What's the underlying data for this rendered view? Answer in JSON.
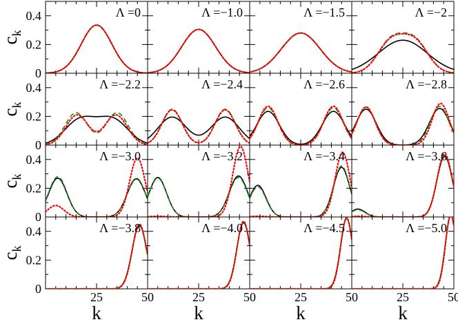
{
  "chart_data": {
    "type": "line",
    "layout": {
      "rows": 4,
      "cols": 4,
      "shared_axes": true
    },
    "xlabel": "k",
    "ylabel": "c",
    "ylabel_subscript": "k",
    "xlim": [
      0,
      50
    ],
    "ylim": [
      0,
      0.5
    ],
    "xticks": [
      25,
      50
    ],
    "xtick_labels": [
      "25",
      "50"
    ],
    "yticks": [
      0,
      0.2,
      0.4
    ],
    "ytick_labels": [
      "0",
      "0.2",
      "0.4"
    ],
    "grid": false,
    "legend": "none",
    "series_styles": [
      {
        "key": "solid",
        "dash": "solid",
        "color": "#000000"
      },
      {
        "key": "dashed",
        "dash": "dashed",
        "color": "#1a8a1a"
      },
      {
        "key": "dotted",
        "dash": "dotted",
        "color": "#ff0000"
      }
    ],
    "panels": [
      {
        "label": "Λ =0",
        "series": {
          "solid": {
            "peaks": [
              {
                "c": 25,
                "s": 7.5,
                "a": 0.335
              }
            ]
          },
          "dashed": {
            "peaks": [
              {
                "c": 25,
                "s": 7.5,
                "a": 0.335
              }
            ]
          },
          "dotted": {
            "peaks": [
              {
                "c": 25,
                "s": 7.5,
                "a": 0.335
              }
            ]
          }
        }
      },
      {
        "label": "Λ =−1.0",
        "series": {
          "solid": {
            "peaks": [
              {
                "c": 25,
                "s": 8.3,
                "a": 0.305
              }
            ]
          },
          "dashed": {
            "peaks": [
              {
                "c": 25,
                "s": 8.3,
                "a": 0.305
              }
            ]
          },
          "dotted": {
            "peaks": [
              {
                "c": 25,
                "s": 8.3,
                "a": 0.305
              }
            ]
          }
        }
      },
      {
        "label": "Λ =−1.5",
        "series": {
          "solid": {
            "peaks": [
              {
                "c": 25,
                "s": 9.5,
                "a": 0.28
              }
            ]
          },
          "dashed": {
            "peaks": [
              {
                "c": 25,
                "s": 9.5,
                "a": 0.28
              }
            ]
          },
          "dotted": {
            "peaks": [
              {
                "c": 25,
                "s": 9.5,
                "a": 0.28
              }
            ]
          }
        }
      },
      {
        "label": "Λ =−2",
        "series": {
          "solid": {
            "peaks": [
              {
                "c": 25,
                "s": 12,
                "a": 0.23
              }
            ]
          },
          "dashed": {
            "peaks": [
              {
                "c": 19,
                "s": 6.5,
                "a": 0.215
              },
              {
                "c": 31,
                "s": 6.5,
                "a": 0.215
              }
            ]
          },
          "dotted": {
            "peaks": [
              {
                "c": 19,
                "s": 6.5,
                "a": 0.21
              },
              {
                "c": 31,
                "s": 6.5,
                "a": 0.21
              }
            ]
          }
        }
      },
      {
        "label": "Λ =−2.2",
        "series": {
          "solid": {
            "peaks": [
              {
                "c": 17,
                "s": 7.5,
                "a": 0.175
              },
              {
                "c": 33,
                "s": 7.5,
                "a": 0.175
              }
            ]
          },
          "dashed": {
            "peaks": [
              {
                "c": 15,
                "s": 5.5,
                "a": 0.225
              },
              {
                "c": 35,
                "s": 5.5,
                "a": 0.225
              }
            ]
          },
          "dotted": {
            "peaks": [
              {
                "c": 15.5,
                "s": 5.5,
                "a": 0.21
              },
              {
                "c": 34.5,
                "s": 5.5,
                "a": 0.21
              }
            ]
          }
        }
      },
      {
        "label": "Λ =−2.4",
        "series": {
          "solid": {
            "peaks": [
              {
                "c": 12,
                "s": 7,
                "a": 0.195
              },
              {
                "c": 38,
                "s": 7,
                "a": 0.195
              }
            ]
          },
          "dashed": {
            "peaks": [
              {
                "c": 12,
                "s": 5,
                "a": 0.25
              },
              {
                "c": 38,
                "s": 5,
                "a": 0.25
              }
            ]
          },
          "dotted": {
            "peaks": [
              {
                "c": 12,
                "s": 5,
                "a": 0.245
              },
              {
                "c": 38,
                "s": 5,
                "a": 0.245
              }
            ]
          }
        }
      },
      {
        "label": "Λ =−2.6",
        "series": {
          "solid": {
            "peaks": [
              {
                "c": 9,
                "s": 5.5,
                "a": 0.235
              },
              {
                "c": 41,
                "s": 5.5,
                "a": 0.235
              }
            ]
          },
          "dashed": {
            "peaks": [
              {
                "c": 9,
                "s": 4.8,
                "a": 0.26
              },
              {
                "c": 41,
                "s": 4.8,
                "a": 0.26
              }
            ]
          },
          "dotted": {
            "peaks": [
              {
                "c": 9,
                "s": 4.8,
                "a": 0.27
              },
              {
                "c": 41,
                "s": 4.8,
                "a": 0.27
              }
            ]
          }
        }
      },
      {
        "label": "Λ =−2.8",
        "series": {
          "solid": {
            "peaks": [
              {
                "c": 7,
                "s": 5,
                "a": 0.25
              },
              {
                "c": 43,
                "s": 5,
                "a": 0.255
              }
            ]
          },
          "dashed": {
            "peaks": [
              {
                "c": 7,
                "s": 4.5,
                "a": 0.265
              },
              {
                "c": 43,
                "s": 4.5,
                "a": 0.27
              }
            ]
          },
          "dotted": {
            "peaks": [
              {
                "c": 7,
                "s": 4.5,
                "a": 0.265
              },
              {
                "c": 43.5,
                "s": 4.2,
                "a": 0.29
              }
            ]
          }
        }
      },
      {
        "label": "Λ =−3.0",
        "series": {
          "solid": {
            "peaks": [
              {
                "c": 6,
                "s": 4.5,
                "a": 0.27
              },
              {
                "c": 44.5,
                "s": 4.5,
                "a": 0.265
              }
            ]
          },
          "dashed": {
            "peaks": [
              {
                "c": 6,
                "s": 4.5,
                "a": 0.28
              },
              {
                "c": 44.5,
                "s": 4.5,
                "a": 0.27
              }
            ]
          },
          "dotted": {
            "peaks": [
              {
                "c": 5,
                "s": 4,
                "a": 0.08
              },
              {
                "c": 45,
                "s": 3.8,
                "a": 0.41
              }
            ]
          }
        }
      },
      {
        "label": "Λ =−3.2",
        "series": {
          "solid": {
            "peaks": [
              {
                "c": 5,
                "s": 4.3,
                "a": 0.275
              },
              {
                "c": 44.5,
                "s": 4.5,
                "a": 0.285
              }
            ]
          },
          "dashed": {
            "peaks": [
              {
                "c": 5,
                "s": 4.3,
                "a": 0.27
              },
              {
                "c": 44.5,
                "s": 4.5,
                "a": 0.275
              }
            ]
          },
          "dotted": {
            "peaks": [
              {
                "c": 5,
                "s": 4,
                "a": 0.005
              },
              {
                "c": 45.5,
                "s": 3.8,
                "a": 0.49
              }
            ]
          }
        }
      },
      {
        "label": "Λ =−3.4",
        "series": {
          "solid": {
            "peaks": [
              {
                "c": 4,
                "s": 4,
                "a": 0.22
              },
              {
                "c": 45,
                "s": 4,
                "a": 0.345
              }
            ]
          },
          "dashed": {
            "peaks": [
              {
                "c": 4,
                "s": 4,
                "a": 0.21
              },
              {
                "c": 45,
                "s": 4,
                "a": 0.355
              }
            ]
          },
          "dotted": {
            "peaks": [
              {
                "c": 4,
                "s": 4,
                "a": 0.005
              },
              {
                "c": 45.5,
                "s": 3.6,
                "a": 0.45
              }
            ]
          }
        }
      },
      {
        "label": "Λ =−3.6",
        "series": {
          "solid": {
            "peaks": [
              {
                "c": 3,
                "s": 3.5,
                "a": 0.055
              },
              {
                "c": 45.5,
                "s": 3.8,
                "a": 0.42
              }
            ]
          },
          "dashed": {
            "peaks": [
              {
                "c": 3,
                "s": 3.5,
                "a": 0.05
              },
              {
                "c": 45.5,
                "s": 3.8,
                "a": 0.425
              }
            ]
          },
          "dotted": {
            "peaks": [
              {
                "c": 3,
                "s": 3.5,
                "a": 0.005
              },
              {
                "c": 45.5,
                "s": 3.7,
                "a": 0.44
              }
            ]
          }
        }
      },
      {
        "label": "Λ =−3.8",
        "series": {
          "solid": {
            "peaks": [
              {
                "c": 46,
                "s": 3.6,
                "a": 0.44
              }
            ]
          },
          "dashed": {
            "peaks": [
              {
                "c": 46,
                "s": 3.6,
                "a": 0.445
              }
            ]
          },
          "dotted": {
            "peaks": [
              {
                "c": 46,
                "s": 3.5,
                "a": 0.45
              }
            ]
          }
        }
      },
      {
        "label": "Λ =−4.0",
        "series": {
          "solid": {
            "peaks": [
              {
                "c": 47,
                "s": 3.3,
                "a": 0.46
              }
            ]
          },
          "dashed": {
            "peaks": [
              {
                "c": 47,
                "s": 3.3,
                "a": 0.465
              }
            ]
          },
          "dotted": {
            "peaks": [
              {
                "c": 47,
                "s": 3.2,
                "a": 0.47
              }
            ]
          }
        }
      },
      {
        "label": "Λ =−4.5",
        "series": {
          "solid": {
            "peaks": [
              {
                "c": 47.5,
                "s": 3.0,
                "a": 0.49
              }
            ]
          },
          "dashed": {
            "peaks": [
              {
                "c": 47.5,
                "s": 3.0,
                "a": 0.49
              }
            ]
          },
          "dotted": {
            "peaks": [
              {
                "c": 47.5,
                "s": 2.9,
                "a": 0.495
              }
            ]
          }
        }
      },
      {
        "label": "Λ =−5.0",
        "series": {
          "solid": {
            "peaks": [
              {
                "c": 48.5,
                "s": 2.7,
                "a": 0.51
              }
            ]
          },
          "dashed": {
            "peaks": [
              {
                "c": 48.5,
                "s": 2.7,
                "a": 0.51
              }
            ]
          },
          "dotted": {
            "peaks": [
              {
                "c": 48.5,
                "s": 2.6,
                "a": 0.515
              }
            ]
          }
        }
      }
    ]
  }
}
